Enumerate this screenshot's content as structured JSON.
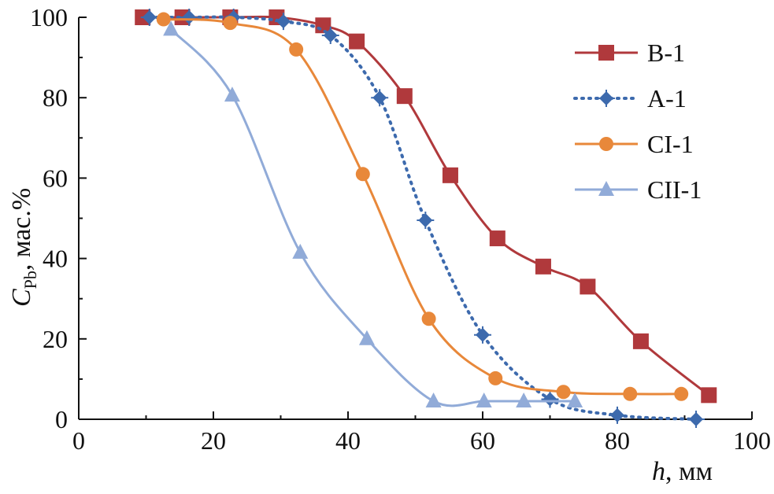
{
  "chart_data": {
    "type": "line",
    "title": "",
    "xlabel": "h, мм",
    "xlabel_var": "h",
    "xlabel_unit": ", мм",
    "ylabel": "C_Pb, мас.%",
    "ylabel_var": "C",
    "ylabel_sub": "Pb",
    "ylabel_unit": ", мас.%",
    "xlim": [
      0,
      100
    ],
    "ylim": [
      0,
      100
    ],
    "xticks": [
      0,
      20,
      40,
      60,
      80,
      100
    ],
    "yticks": [
      0,
      20,
      40,
      60,
      80,
      100
    ],
    "grid": false,
    "legend_position": "top-right",
    "series": [
      {
        "name": "B-1",
        "color": "#b0393c",
        "marker": "square",
        "style": "solid",
        "x": [
          9.5,
          15.4,
          22.5,
          29.4,
          36.3,
          41.3,
          48.4,
          55.2,
          62.2,
          69.0,
          75.6,
          83.5,
          93.6
        ],
        "y": [
          100,
          100,
          100,
          100,
          98,
          94,
          80.4,
          60.7,
          45,
          38,
          33,
          19.4,
          6
        ]
      },
      {
        "name": "A-1",
        "color": "#3d6aad",
        "marker": "diamond-plus",
        "style": "dotted",
        "x": [
          10.5,
          16.4,
          23.0,
          30.4,
          37.4,
          44.7,
          51.5,
          60.0,
          70.0,
          80.0,
          91.7
        ],
        "y": [
          100,
          100,
          100,
          99,
          95.5,
          80,
          49.5,
          21,
          5,
          1,
          0
        ]
      },
      {
        "name": "CI-1",
        "color": "#e8883a",
        "marker": "circle",
        "style": "solid",
        "x": [
          12.6,
          22.5,
          32.3,
          42.2,
          52.0,
          61.9,
          72.0,
          81.9,
          89.5
        ],
        "y": [
          99.5,
          98.6,
          92,
          61,
          25,
          10.2,
          6.8,
          6.3,
          6.3
        ]
      },
      {
        "name": "CII-1",
        "color": "#91abd8",
        "marker": "triangle",
        "style": "solid",
        "x": [
          13.7,
          22.8,
          32.9,
          42.8,
          52.7,
          60.2,
          66.1,
          73.7
        ],
        "y": [
          97,
          80.6,
          41.5,
          20,
          4.5,
          4.5,
          4.5,
          4.5
        ]
      }
    ]
  }
}
